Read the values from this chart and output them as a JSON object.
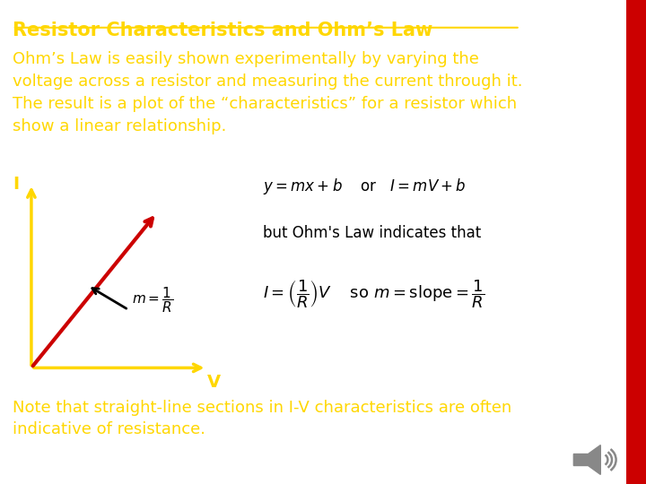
{
  "background_color": "#ffffff",
  "title": "Resistor Characteristics and Ohm’s Law",
  "title_color": "#FFD700",
  "title_fontsize": 15,
  "body_text": "Ohm’s Law is easily shown experimentally by varying the\nvoltage across a resistor and measuring the current through it.\nThe result is a plot of the “characteristics” for a resistor which\nshow a linear relationship.",
  "body_color": "#FFD700",
  "body_fontsize": 13,
  "note_text": "Note that straight-line sections in I-V characteristics are often\nindicative of resistance.",
  "note_color": "#FFD700",
  "note_fontsize": 13,
  "axis_color": "#FFD700",
  "line_color": "#CC0000",
  "arrow_color": "#000000",
  "label_I": "I",
  "label_V": "V",
  "right_panel_color": "#CC0000",
  "equation2": "but Ohm's Law indicates that",
  "eq_fontsize": 12
}
